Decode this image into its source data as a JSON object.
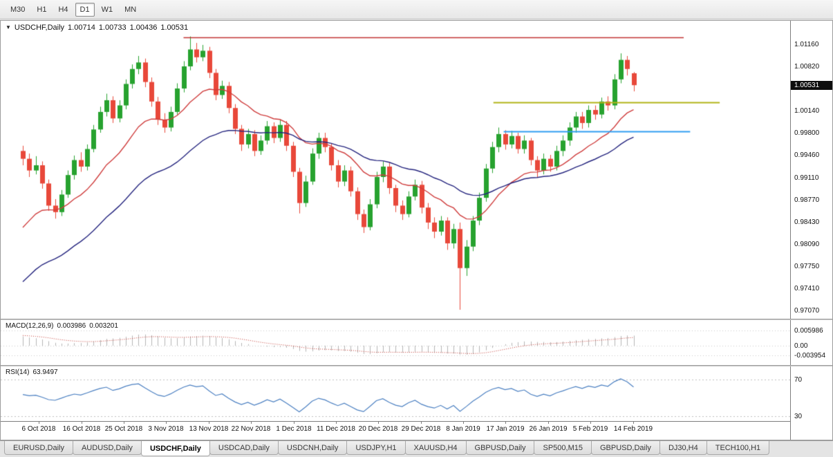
{
  "toolbar": {
    "timeframes": [
      {
        "label": "M30"
      },
      {
        "label": "H1"
      },
      {
        "label": "H4"
      },
      {
        "label": "D1",
        "active": true
      },
      {
        "label": "W1"
      },
      {
        "label": "MN"
      }
    ]
  },
  "chart": {
    "collapse_icon": "▼",
    "symbol": "USDCHF,Daily",
    "ohlc": {
      "open": "1.00714",
      "high": "1.00733",
      "low": "1.00436",
      "close": "1.00531"
    }
  },
  "price_scale": {
    "labels": [
      {
        "text": "1.01160",
        "price": 1.0116
      },
      {
        "text": "1.00820",
        "price": 1.0082
      },
      {
        "text": "1.00140",
        "price": 1.0014
      },
      {
        "text": "0.99800",
        "price": 0.998
      },
      {
        "text": "0.99460",
        "price": 0.9946
      },
      {
        "text": "0.99110",
        "price": 0.9911
      },
      {
        "text": "0.98770",
        "price": 0.9877
      },
      {
        "text": "0.98430",
        "price": 0.9843
      },
      {
        "text": "0.98090",
        "price": 0.9809
      },
      {
        "text": "0.97750",
        "price": 0.9775
      },
      {
        "text": "0.97410",
        "price": 0.9741
      },
      {
        "text": "0.97070",
        "price": 0.9707
      }
    ],
    "current": {
      "text": "1.00531",
      "price": 1.00531
    }
  },
  "chart_data": {
    "type": "candlestick",
    "symbol": "USDCHF",
    "timeframe": "Daily",
    "bull_color": "#27a22f",
    "bear_color": "#e8483a",
    "candles": [
      [
        0.9952,
        0.996,
        0.993,
        0.994
      ],
      [
        0.994,
        0.9948,
        0.9912,
        0.9922
      ],
      [
        0.9922,
        0.9944,
        0.9916,
        0.993
      ],
      [
        0.993,
        0.9936,
        0.9894,
        0.9902
      ],
      [
        0.9902,
        0.9908,
        0.986,
        0.9868
      ],
      [
        0.9868,
        0.9878,
        0.9848,
        0.9858
      ],
      [
        0.9858,
        0.9892,
        0.9852,
        0.9885
      ],
      [
        0.9885,
        0.9922,
        0.988,
        0.9915
      ],
      [
        0.9915,
        0.9945,
        0.9908,
        0.9938
      ],
      [
        0.9938,
        0.995,
        0.992,
        0.9928
      ],
      [
        0.9928,
        0.9962,
        0.9922,
        0.9955
      ],
      [
        0.9955,
        0.9992,
        0.995,
        0.9985
      ],
      [
        0.9985,
        1.002,
        0.998,
        1.0012
      ],
      [
        1.0012,
        1.004,
        1.0005,
        1.003
      ],
      [
        1.003,
        1.0036,
        0.9995,
        1.0002
      ],
      [
        1.0002,
        1.003,
        0.9996,
        1.0022
      ],
      [
        1.0022,
        1.0062,
        1.0016,
        1.0055
      ],
      [
        1.0055,
        1.0085,
        1.0048,
        1.0078
      ],
      [
        1.0078,
        1.0098,
        1.007,
        1.0088
      ],
      [
        1.0088,
        1.0094,
        1.005,
        1.0058
      ],
      [
        1.0058,
        1.0065,
        1.002,
        1.0028
      ],
      [
        1.0028,
        1.0035,
        0.9992,
        1.0
      ],
      [
        1.0,
        1.001,
        0.998,
        0.9988
      ],
      [
        0.9988,
        1.002,
        0.9982,
        1.0012
      ],
      [
        1.0012,
        1.0056,
        1.0008,
        1.0048
      ],
      [
        1.0048,
        1.009,
        1.0042,
        1.0082
      ],
      [
        1.0082,
        1.0128,
        1.0076,
        1.0108
      ],
      [
        1.0108,
        1.0118,
        1.0088,
        1.0096
      ],
      [
        1.0096,
        1.0115,
        1.009,
        1.0106
      ],
      [
        1.0106,
        1.0112,
        1.0064,
        1.0072
      ],
      [
        1.0072,
        1.0078,
        1.003,
        1.0038
      ],
      [
        1.0038,
        1.006,
        1.0032,
        1.0052
      ],
      [
        1.0052,
        1.0058,
        1.001,
        1.0018
      ],
      [
        1.0018,
        1.0024,
        0.9978,
        0.9986
      ],
      [
        0.9986,
        0.9992,
        0.9952,
        0.9962
      ],
      [
        0.9962,
        0.9986,
        0.9956,
        0.9978
      ],
      [
        0.9978,
        0.9984,
        0.9944,
        0.9952
      ],
      [
        0.9952,
        0.9976,
        0.9946,
        0.9968
      ],
      [
        0.9968,
        0.9998,
        0.9962,
        0.999
      ],
      [
        0.999,
        0.9996,
        0.9964,
        0.9972
      ],
      [
        0.9972,
        1.0,
        0.9966,
        0.9992
      ],
      [
        0.9992,
        0.9998,
        0.9952,
        0.996
      ],
      [
        0.996,
        0.9966,
        0.9912,
        0.992
      ],
      [
        0.992,
        0.9926,
        0.9856,
        0.9872
      ],
      [
        0.9872,
        0.9914,
        0.9866,
        0.9905
      ],
      [
        0.9905,
        0.9956,
        0.99,
        0.9948
      ],
      [
        0.9948,
        0.998,
        0.994,
        0.9972
      ],
      [
        0.9972,
        0.998,
        0.995,
        0.9958
      ],
      [
        0.9958,
        0.9964,
        0.9922,
        0.993
      ],
      [
        0.993,
        0.9938,
        0.9896,
        0.9905
      ],
      [
        0.9905,
        0.993,
        0.9898,
        0.9922
      ],
      [
        0.9922,
        0.9928,
        0.9882,
        0.989
      ],
      [
        0.989,
        0.9896,
        0.9846,
        0.9855
      ],
      [
        0.9855,
        0.9862,
        0.9826,
        0.9835
      ],
      [
        0.9835,
        0.9878,
        0.983,
        0.987
      ],
      [
        0.987,
        0.992,
        0.9864,
        0.9912
      ],
      [
        0.9912,
        0.9936,
        0.9904,
        0.9928
      ],
      [
        0.9928,
        0.9934,
        0.9886,
        0.9895
      ],
      [
        0.9895,
        0.99,
        0.9858,
        0.9868
      ],
      [
        0.9868,
        0.9876,
        0.9846,
        0.9855
      ],
      [
        0.9855,
        0.989,
        0.985,
        0.9882
      ],
      [
        0.9882,
        0.9908,
        0.9876,
        0.99
      ],
      [
        0.99,
        0.9906,
        0.9856,
        0.9865
      ],
      [
        0.9865,
        0.9872,
        0.9832,
        0.9842
      ],
      [
        0.9842,
        0.985,
        0.9818,
        0.9828
      ],
      [
        0.9828,
        0.9852,
        0.9822,
        0.9845
      ],
      [
        0.9845,
        0.985,
        0.98,
        0.981
      ],
      [
        0.981,
        0.984,
        0.9802,
        0.9832
      ],
      [
        0.9832,
        0.9842,
        0.9708,
        0.9772
      ],
      [
        0.9772,
        0.9815,
        0.976,
        0.9805
      ],
      [
        0.9805,
        0.9852,
        0.9798,
        0.9845
      ],
      [
        0.9845,
        0.9888,
        0.9838,
        0.988
      ],
      [
        0.988,
        0.9932,
        0.9874,
        0.9925
      ],
      [
        0.9925,
        0.9966,
        0.9918,
        0.9958
      ],
      [
        0.9958,
        0.9988,
        0.995,
        0.9978
      ],
      [
        0.9978,
        0.9984,
        0.9954,
        0.9962
      ],
      [
        0.9962,
        0.9983,
        0.9956,
        0.9975
      ],
      [
        0.9975,
        0.998,
        0.9948,
        0.9955
      ],
      [
        0.9955,
        0.9976,
        0.9948,
        0.9968
      ],
      [
        0.9968,
        0.9972,
        0.993,
        0.9938
      ],
      [
        0.9938,
        0.9944,
        0.9912,
        0.9922
      ],
      [
        0.9922,
        0.9948,
        0.9916,
        0.994
      ],
      [
        0.994,
        0.9946,
        0.992,
        0.9928
      ],
      [
        0.9928,
        0.996,
        0.9922,
        0.9952
      ],
      [
        0.9952,
        0.9976,
        0.9944,
        0.9968
      ],
      [
        0.9968,
        0.9996,
        0.996,
        0.9988
      ],
      [
        0.9988,
        1.0012,
        0.998,
        1.0005
      ],
      [
        1.0005,
        1.0012,
        0.9986,
        0.9995
      ],
      [
        0.9995,
        1.0022,
        0.9988,
        1.0015
      ],
      [
        1.0015,
        1.0022,
        1.0,
        1.0008
      ],
      [
        1.0008,
        1.0034,
        1.0002,
        1.0028
      ],
      [
        1.0028,
        1.0036,
        1.0014,
        1.0022
      ],
      [
        1.0022,
        1.007,
        1.0016,
        1.0062
      ],
      [
        1.0062,
        1.0102,
        1.0056,
        1.0092
      ],
      [
        1.0092,
        1.0098,
        1.0068,
        1.0078
      ],
      [
        1.00714,
        1.00733,
        1.00436,
        1.00531
      ]
    ],
    "date_labels": [
      {
        "text": "6 Oct 2018",
        "bar": 2.5
      },
      {
        "text": "16 Oct 2018",
        "bar": 9.1
      },
      {
        "text": "25 Oct 2018",
        "bar": 15.7
      },
      {
        "text": "3 Nov 2018",
        "bar": 22.3
      },
      {
        "text": "13 Nov 2018",
        "bar": 28.9
      },
      {
        "text": "22 Nov 2018",
        "bar": 35.5
      },
      {
        "text": "1 Dec 2018",
        "bar": 42.1
      },
      {
        "text": "11 Dec 2018",
        "bar": 48.7
      },
      {
        "text": "20 Dec 2018",
        "bar": 55.3
      },
      {
        "text": "29 Dec 2018",
        "bar": 61.9
      },
      {
        "text": "8 Jan 2019",
        "bar": 68.5
      },
      {
        "text": "17 Jan 2019",
        "bar": 75.1
      },
      {
        "text": "26 Jan 2019",
        "bar": 81.7
      },
      {
        "text": "5 Feb 2019",
        "bar": 88.3
      },
      {
        "text": "14 Feb 2019",
        "bar": 94.9
      }
    ],
    "hlines": [
      {
        "name": "resistance-line",
        "color": "#c03030",
        "price": 1.0127,
        "from_bar": 25,
        "to_bar": 102.8,
        "width": 1.4
      },
      {
        "name": "yellow-level-line",
        "color": "#b2b416",
        "price": 1.0027,
        "from_bar": 73.2,
        "to_bar": 108.4,
        "width": 2
      },
      {
        "name": "blue-level-line",
        "color": "#2e9df0",
        "price": 0.9982,
        "from_bar": 74.8,
        "to_bar": 103.8,
        "width": 2
      }
    ],
    "moving_averages": [
      {
        "name": "fast-ma",
        "color": "#cf3d3d",
        "alpha": 0.12,
        "seed": 0.982
      },
      {
        "name": "slow-ma",
        "color": "#24247e",
        "alpha": 0.055,
        "seed": 0.974
      }
    ],
    "macd": {
      "label": "MACD(12,26,9)",
      "main": "0.003986",
      "signal": "0.003201",
      "hist_color": "#b5b5b5",
      "signal_color": "#c2362e",
      "axis": [
        {
          "text": "0.005986",
          "value": 0.005986
        },
        {
          "text": "0.00",
          "value": 0
        },
        {
          "text": "-0.003954",
          "value": -0.003954
        }
      ]
    },
    "rsi": {
      "label": "RSI(14)",
      "value": "63.9497",
      "line_color": "#4a7fc1",
      "levels": [
        70,
        30
      ],
      "axis": [
        {
          "text": "70",
          "value": 70
        },
        {
          "text": "30",
          "value": 30
        }
      ]
    }
  },
  "tabbar": {
    "tabs": [
      {
        "label": "EURUSD,Daily"
      },
      {
        "label": "AUDUSD,Daily"
      },
      {
        "label": "USDCHF,Daily",
        "active": true
      },
      {
        "label": "USDCAD,Daily"
      },
      {
        "label": "USDCNH,Daily"
      },
      {
        "label": "USDJPY,H1"
      },
      {
        "label": "XAUUSD,H4"
      },
      {
        "label": "GBPUSD,Daily"
      },
      {
        "label": "SP500,M15"
      },
      {
        "label": "GBPUSD,Daily"
      },
      {
        "label": "DJ30,H4"
      },
      {
        "label": "TECH100,H1"
      }
    ]
  }
}
